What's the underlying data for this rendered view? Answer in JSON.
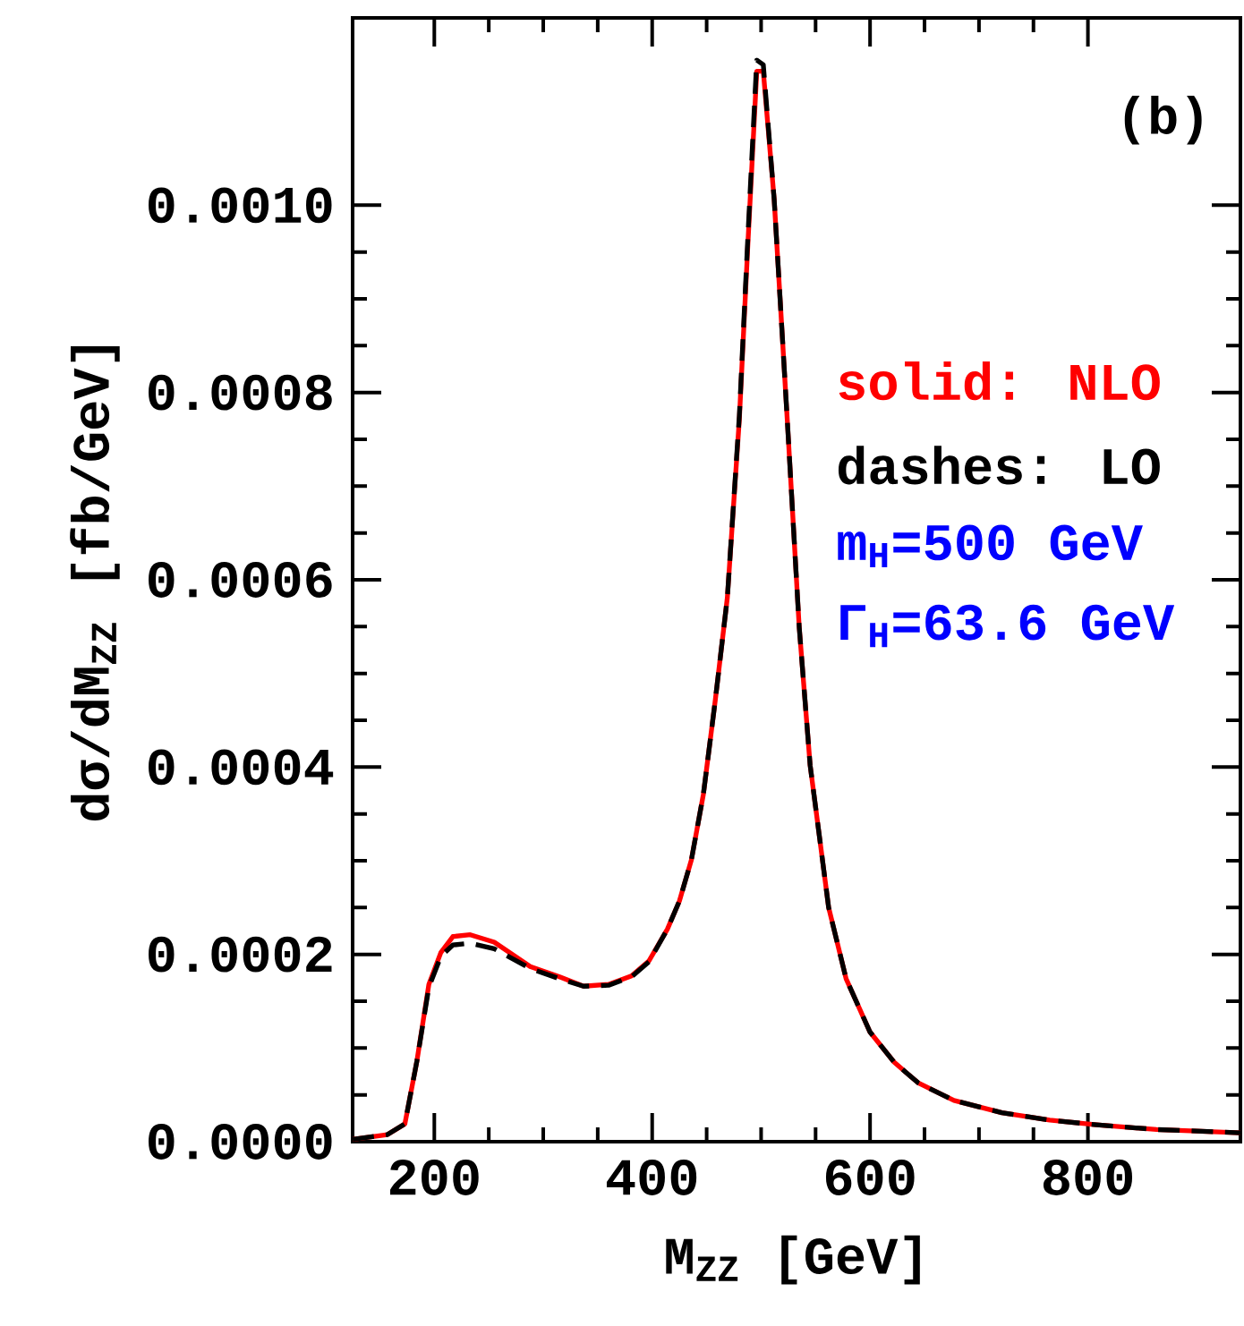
{
  "chart_data": {
    "type": "line",
    "xlabel": "M$_{ZZ}$ [GeV]",
    "ylabel": "dσ/dM$_{ZZ}$ [fb/GeV]",
    "xlim": [
      125,
      940
    ],
    "ylim": [
      0,
      0.0012
    ],
    "xticks": [
      200,
      400,
      600,
      800
    ],
    "yticks": [
      {
        "value": 0,
        "label": "0.0000"
      },
      {
        "value": 0.0002,
        "label": "0.0002"
      },
      {
        "value": 0.0004,
        "label": "0.0004"
      },
      {
        "value": 0.0006,
        "label": "0.0006"
      },
      {
        "value": 0.0008,
        "label": "0.0008"
      },
      {
        "value": 0.001,
        "label": "0.0010"
      }
    ],
    "annotations": [
      "(b)",
      "solid: NLO",
      "dashes: LO",
      "m$_{H}$=500 GeV",
      "Γ$_{H}$=63.6 GeV"
    ],
    "x": [
      125,
      157,
      173,
      184,
      195,
      206,
      217,
      233,
      255,
      288,
      315,
      337,
      360,
      381,
      397,
      414,
      425,
      436,
      447,
      458,
      469,
      480,
      488,
      496,
      502,
      512,
      524,
      535,
      545,
      562,
      578,
      600,
      622,
      644,
      677,
      721,
      765,
      808,
      863,
      940
    ],
    "series": [
      {
        "color": "#ff0000",
        "line_style": "solid",
        "values": [
          2.5e-06,
          7.6e-06,
          1.9e-05,
          8.6e-05,
          0.000168,
          0.000202,
          0.000219,
          0.000221,
          0.000213,
          0.000187,
          0.000176,
          0.000166,
          0.000168,
          0.000177,
          0.000193,
          0.000227,
          0.000257,
          0.000301,
          0.000371,
          0.000472,
          0.000581,
          0.000771,
          0.000962,
          0.001143,
          0.001143,
          0.001006,
          0.000771,
          0.000549,
          0.000402,
          0.00025,
          0.000174,
          0.000117,
          8.5e-05,
          6.3e-05,
          4.4e-05,
          3.1e-05,
          2.3e-05,
          1.8e-05,
          1.3e-05,
          9.5e-06
        ]
      },
      {
        "color": "#000000",
        "line_style": "dashed",
        "values": [
          2.5e-06,
          7.6e-06,
          1.9e-05,
          8.6e-05,
          0.000165,
          0.000198,
          0.00021,
          0.000212,
          0.000206,
          0.000185,
          0.000174,
          0.000166,
          0.000167,
          0.000176,
          0.000192,
          0.000227,
          0.000257,
          0.000301,
          0.000371,
          0.000472,
          0.000581,
          0.000775,
          0.00097,
          0.001155,
          0.00115,
          0.001006,
          0.000771,
          0.000549,
          0.000402,
          0.00025,
          0.000174,
          0.000117,
          8.5e-05,
          6.3e-05,
          4.4e-05,
          3.1e-05,
          2.3e-05,
          1.8e-05,
          1.3e-05,
          9.5e-06
        ]
      }
    ]
  }
}
